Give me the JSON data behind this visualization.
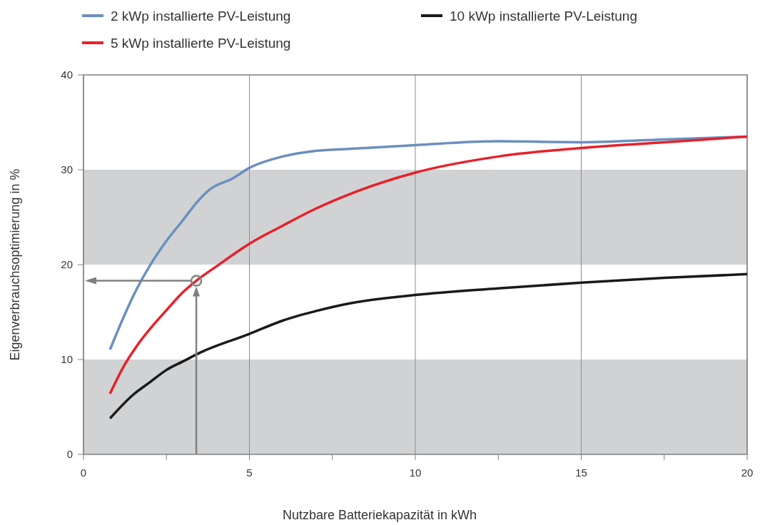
{
  "chart_data": {
    "type": "line",
    "xlabel": "Nutzbare Batteriekapazität in kWh",
    "ylabel": "Eigenverbrauchsoptimierung in %",
    "xlim": [
      0,
      20
    ],
    "xticks": [
      0,
      {
        "value": 2.5,
        "label": null
      },
      5,
      {
        "value": 7.5,
        "label": null
      },
      10,
      {
        "value": 12.5,
        "label": null
      },
      15,
      {
        "value": 17.5,
        "label": null
      },
      20
    ],
    "ylim": [
      0,
      40
    ],
    "yticks": [
      0,
      10,
      20,
      30,
      40
    ],
    "grid": "x",
    "legend": "top left",
    "line_style": "solid",
    "bands": [
      {
        "axis": "y",
        "from": 0,
        "to": 10,
        "color": "#d1d2d4"
      },
      {
        "axis": "y",
        "from": 20,
        "to": 30,
        "color": "#d1d2d4"
      }
    ],
    "series": [
      {
        "name": "2 kWp installierte PV-Leistung",
        "color": "#6b8fbf",
        "x": [
          0.8,
          1.2,
          1.6,
          2,
          2.5,
          3,
          3.4,
          3.8,
          4.5,
          5,
          6,
          7,
          8,
          10,
          12.5,
          15,
          17.5,
          20
        ],
        "values": [
          11.05,
          14.4,
          17.4,
          19.9,
          22.5,
          24.7,
          26.5,
          27.9,
          29.1,
          30.2,
          31.4,
          32,
          32.2,
          32.6,
          33,
          32.9,
          33.2,
          33.5
        ]
      },
      {
        "name": "5 kWp installierte PV-Leistung",
        "color": "#e8202a",
        "x": [
          0.8,
          1.2,
          1.6,
          2,
          2.5,
          3,
          3.4,
          4,
          5,
          6,
          7,
          8,
          10,
          12.5,
          15,
          17.5,
          20
        ],
        "values": [
          6.4,
          9.2,
          11.4,
          13.2,
          15.2,
          17.1,
          18.3,
          19.8,
          22.2,
          24.1,
          25.9,
          27.4,
          29.7,
          31.4,
          32.3,
          32.9,
          33.5
        ]
      },
      {
        "name": "10 kWp installierte PV-Leistung",
        "color": "#1a1a1a",
        "x": [
          0.8,
          1.5,
          2,
          2.5,
          3,
          3.5,
          5,
          6,
          7,
          8,
          10,
          12.5,
          15,
          17.5,
          20
        ],
        "values": [
          3.8,
          6.3,
          7.6,
          8.9,
          9.8,
          10.7,
          12.7,
          14.1,
          15.1,
          15.9,
          16.8,
          17.5,
          18.1,
          18.6,
          19.0
        ]
      }
    ]
  }
}
